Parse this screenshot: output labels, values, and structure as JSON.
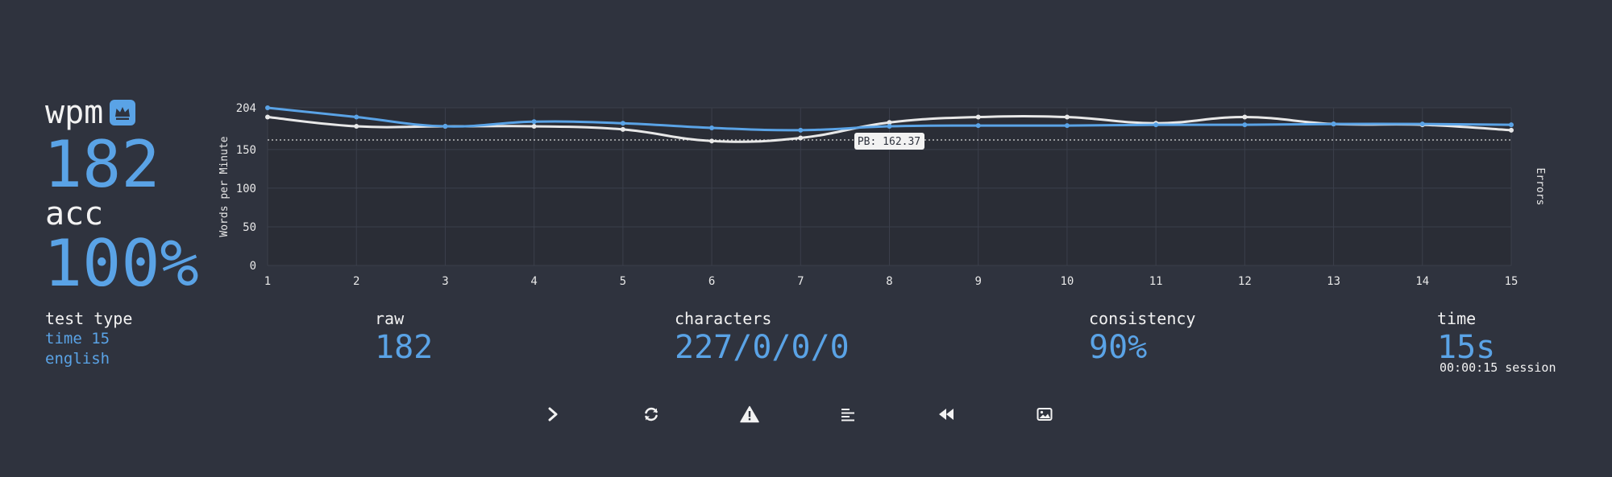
{
  "stats": {
    "wpm_label": "wpm",
    "wpm": "182",
    "acc_label": "acc",
    "acc": "100%"
  },
  "test_type": {
    "label": "test type",
    "mode": "time 15",
    "language": "english"
  },
  "bottom": {
    "raw_label": "raw",
    "raw": "182",
    "characters_label": "characters",
    "characters": "227/0/0/0",
    "consistency_label": "consistency",
    "consistency": "90%",
    "time_label": "time",
    "time": "15s",
    "session": "00:00:15 session"
  },
  "chart_data": {
    "type": "line",
    "x": [
      1,
      2,
      3,
      4,
      5,
      6,
      7,
      8,
      9,
      10,
      11,
      12,
      13,
      14,
      15
    ],
    "ylabel": "Words per Minute",
    "y2label": "Errors",
    "ylim": [
      0,
      204
    ],
    "yticks": [
      0,
      50,
      100,
      150,
      204
    ],
    "series": [
      {
        "color": "#5aa3e6",
        "values": [
          204,
          192,
          180,
          186,
          184,
          178,
          175,
          180,
          181,
          181,
          182,
          182,
          183,
          183,
          182
        ]
      },
      {
        "color": "#e8e8e8",
        "values": [
          192,
          180,
          180,
          180,
          176,
          161,
          165,
          185,
          192,
          192,
          184,
          192,
          183,
          182,
          175
        ]
      }
    ],
    "reference_line": {
      "value": 162.37,
      "label": "PB: 162.37"
    },
    "grid": true
  },
  "icons": [
    "next-icon",
    "restart-icon",
    "warning-icon",
    "words-history-icon",
    "replay-icon",
    "screenshot-icon"
  ],
  "colors": {
    "accent": "#5aa3e6",
    "background": "#2f333e",
    "text": "#f0f0f0"
  }
}
